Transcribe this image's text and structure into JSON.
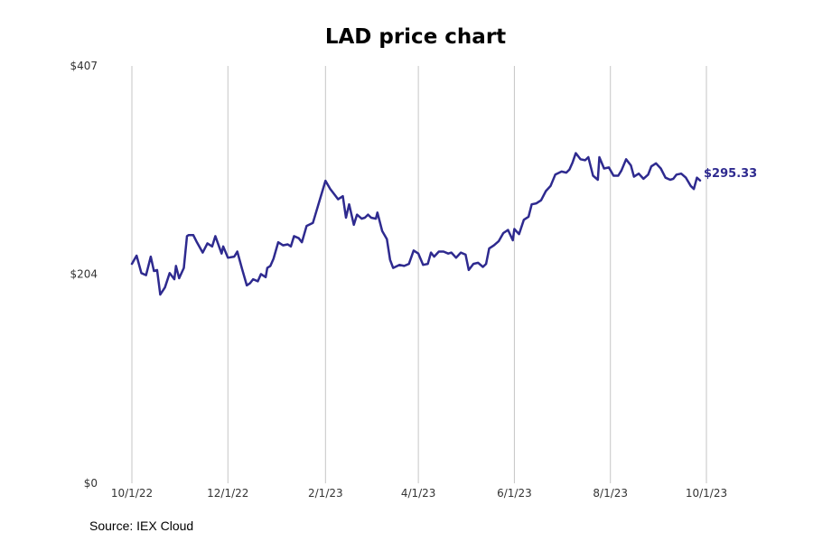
{
  "chart_data": {
    "type": "line",
    "title": "LAD price chart",
    "source": "Source: IEX Cloud",
    "xlabel": "",
    "ylabel": "",
    "ylim": [
      0,
      407
    ],
    "y_ticks": [
      0,
      204,
      407
    ],
    "y_tick_labels": [
      "$0",
      "$204",
      "$407"
    ],
    "x_ticks": [
      "2022-10-01",
      "2022-12-01",
      "2023-02-01",
      "2023-04-01",
      "2023-06-01",
      "2023-08-01",
      "2023-10-01"
    ],
    "x_tick_labels": [
      "10/1/22",
      "12/1/22",
      "2/1/23",
      "4/1/23",
      "6/1/23",
      "8/1/23",
      "10/1/23"
    ],
    "grid": "vertical",
    "line_color": "#2e2a8f",
    "last_value_label": "$295.33",
    "series": [
      {
        "points": [
          [
            "2022-10-01",
            214
          ],
          [
            "2022-10-04",
            222
          ],
          [
            "2022-10-07",
            205
          ],
          [
            "2022-10-10",
            203
          ],
          [
            "2022-10-13",
            221
          ],
          [
            "2022-10-15",
            207
          ],
          [
            "2022-10-17",
            208
          ],
          [
            "2022-10-19",
            184
          ],
          [
            "2022-10-22",
            191
          ],
          [
            "2022-10-25",
            205
          ],
          [
            "2022-10-28",
            199
          ],
          [
            "2022-10-29",
            212
          ],
          [
            "2022-10-31",
            200
          ],
          [
            "2022-11-03",
            210
          ],
          [
            "2022-11-05",
            241
          ],
          [
            "2022-11-06",
            242
          ],
          [
            "2022-11-09",
            242
          ],
          [
            "2022-11-11",
            236
          ],
          [
            "2022-11-15",
            225
          ],
          [
            "2022-11-18",
            234
          ],
          [
            "2022-11-21",
            231
          ],
          [
            "2022-11-23",
            241
          ],
          [
            "2022-11-27",
            224
          ],
          [
            "2022-11-28",
            231
          ],
          [
            "2022-12-01",
            220
          ],
          [
            "2022-12-05",
            221
          ],
          [
            "2022-12-07",
            226
          ],
          [
            "2022-12-10",
            209
          ],
          [
            "2022-12-13",
            193
          ],
          [
            "2022-12-15",
            195
          ],
          [
            "2022-12-17",
            199
          ],
          [
            "2022-12-20",
            197
          ],
          [
            "2022-12-22",
            204
          ],
          [
            "2022-12-25",
            201
          ],
          [
            "2022-12-26",
            210
          ],
          [
            "2022-12-28",
            212
          ],
          [
            "2022-12-30",
            219
          ],
          [
            "2023-01-02",
            235
          ],
          [
            "2023-01-05",
            232
          ],
          [
            "2023-01-08",
            233
          ],
          [
            "2023-01-10",
            231
          ],
          [
            "2023-01-12",
            241
          ],
          [
            "2023-01-15",
            239
          ],
          [
            "2023-01-17",
            235
          ],
          [
            "2023-01-20",
            251
          ],
          [
            "2023-01-24",
            254
          ],
          [
            "2023-02-01",
            295
          ],
          [
            "2023-02-04",
            287
          ],
          [
            "2023-02-07",
            281
          ],
          [
            "2023-02-09",
            277
          ],
          [
            "2023-02-12",
            280
          ],
          [
            "2023-02-14",
            259
          ],
          [
            "2023-02-16",
            272
          ],
          [
            "2023-02-19",
            252
          ],
          [
            "2023-02-21",
            262
          ],
          [
            "2023-02-24",
            258
          ],
          [
            "2023-02-26",
            259
          ],
          [
            "2023-02-28",
            262
          ],
          [
            "2023-03-02",
            259
          ],
          [
            "2023-03-05",
            258
          ],
          [
            "2023-03-06",
            264
          ],
          [
            "2023-03-09",
            246
          ],
          [
            "2023-03-12",
            238
          ],
          [
            "2023-03-14",
            218
          ],
          [
            "2023-03-16",
            210
          ],
          [
            "2023-03-20",
            213
          ],
          [
            "2023-03-23",
            212
          ],
          [
            "2023-03-26",
            214
          ],
          [
            "2023-03-29",
            227
          ],
          [
            "2023-04-01",
            224
          ],
          [
            "2023-04-04",
            213
          ],
          [
            "2023-04-07",
            214
          ],
          [
            "2023-04-09",
            225
          ],
          [
            "2023-04-11",
            221
          ],
          [
            "2023-04-14",
            226
          ],
          [
            "2023-04-17",
            226
          ],
          [
            "2023-04-20",
            224
          ],
          [
            "2023-04-22",
            225
          ],
          [
            "2023-04-25",
            220
          ],
          [
            "2023-04-28",
            225
          ],
          [
            "2023-05-01",
            223
          ],
          [
            "2023-05-03",
            208
          ],
          [
            "2023-05-06",
            214
          ],
          [
            "2023-05-09",
            215
          ],
          [
            "2023-05-12",
            211
          ],
          [
            "2023-05-14",
            214
          ],
          [
            "2023-05-16",
            229
          ],
          [
            "2023-05-19",
            232
          ],
          [
            "2023-05-22",
            236
          ],
          [
            "2023-05-25",
            244
          ],
          [
            "2023-05-28",
            247
          ],
          [
            "2023-05-31",
            237
          ],
          [
            "2023-06-01",
            248
          ],
          [
            "2023-06-04",
            243
          ],
          [
            "2023-06-07",
            257
          ],
          [
            "2023-06-10",
            260
          ],
          [
            "2023-06-12",
            272
          ],
          [
            "2023-06-15",
            273
          ],
          [
            "2023-06-18",
            276
          ],
          [
            "2023-06-21",
            285
          ],
          [
            "2023-06-24",
            290
          ],
          [
            "2023-06-27",
            301
          ],
          [
            "2023-07-01",
            304
          ],
          [
            "2023-07-04",
            303
          ],
          [
            "2023-07-06",
            306
          ],
          [
            "2023-07-08",
            313
          ],
          [
            "2023-07-10",
            322
          ],
          [
            "2023-07-13",
            316
          ],
          [
            "2023-07-16",
            315
          ],
          [
            "2023-07-18",
            318
          ],
          [
            "2023-07-21",
            300
          ],
          [
            "2023-07-24",
            296
          ],
          [
            "2023-07-25",
            318
          ],
          [
            "2023-07-28",
            307
          ],
          [
            "2023-07-31",
            308
          ],
          [
            "2023-08-03",
            300
          ],
          [
            "2023-08-06",
            300
          ],
          [
            "2023-08-08",
            305
          ],
          [
            "2023-08-11",
            316
          ],
          [
            "2023-08-14",
            310
          ],
          [
            "2023-08-16",
            299
          ],
          [
            "2023-08-19",
            302
          ],
          [
            "2023-08-22",
            297
          ],
          [
            "2023-08-25",
            301
          ],
          [
            "2023-08-27",
            309
          ],
          [
            "2023-08-30",
            312
          ],
          [
            "2023-09-02",
            307
          ],
          [
            "2023-09-05",
            298
          ],
          [
            "2023-09-08",
            296
          ],
          [
            "2023-09-10",
            297
          ],
          [
            "2023-09-12",
            301
          ],
          [
            "2023-09-15",
            302
          ],
          [
            "2023-09-18",
            298
          ],
          [
            "2023-09-21",
            290
          ],
          [
            "2023-09-23",
            287
          ],
          [
            "2023-09-25",
            298
          ],
          [
            "2023-09-27",
            295.33
          ]
        ]
      }
    ]
  }
}
